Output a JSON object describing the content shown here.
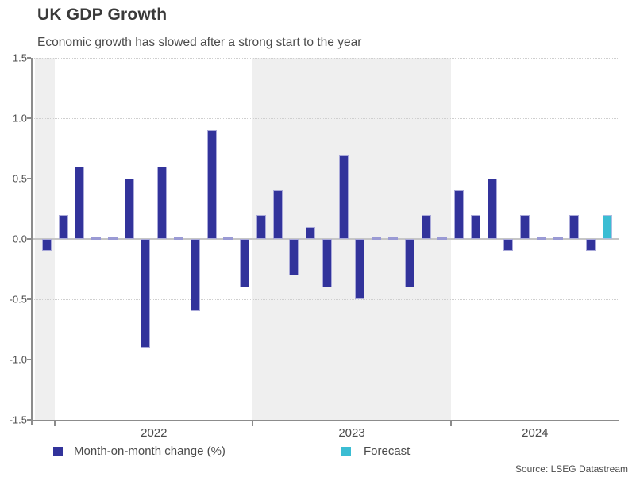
{
  "chart_data": {
    "type": "bar",
    "title": "UK GDP Growth",
    "subtitle": "Economic growth has slowed after a strong start to the year",
    "xlabel": "",
    "ylabel": "",
    "ylim": [
      -1.5,
      1.5
    ],
    "ytick_values": [
      1.5,
      1.0,
      0.5,
      0.0,
      -0.5,
      -1.0,
      -1.5
    ],
    "ytick_labels": [
      "1.5",
      "1.0",
      "0.5",
      "0.0",
      "-0.5",
      "-1.0",
      "-1.5"
    ],
    "grid": "horizontal dotted every 0.5, solid gray line at 0",
    "legend_position": "bottom",
    "year_labels": [
      "2022",
      "2023",
      "2024"
    ],
    "year_start_indices": [
      1,
      13,
      25
    ],
    "shaded_periods": [
      "pre-2022",
      "2023"
    ],
    "series": [
      {
        "name": "Month-on-month change (%)",
        "color": "#32339B"
      },
      {
        "name": "Forecast",
        "color": "#3BBDD3"
      }
    ],
    "bars": [
      {
        "month": "Dec 2021",
        "value": -0.1,
        "series": 0
      },
      {
        "month": "Jan 2022",
        "value": 0.2,
        "series": 0
      },
      {
        "month": "Feb 2022",
        "value": 0.6,
        "series": 0
      },
      {
        "month": "Mar 2022",
        "value": 0.0,
        "series": 0
      },
      {
        "month": "Apr 2022",
        "value": 0.0,
        "series": 0
      },
      {
        "month": "May 2022",
        "value": 0.5,
        "series": 0
      },
      {
        "month": "Jun 2022",
        "value": -0.9,
        "series": 0
      },
      {
        "month": "Jul 2022",
        "value": 0.6,
        "series": 0
      },
      {
        "month": "Aug 2022",
        "value": 0.0,
        "series": 0
      },
      {
        "month": "Sep 2022",
        "value": -0.6,
        "series": 0
      },
      {
        "month": "Oct 2022",
        "value": 0.9,
        "series": 0
      },
      {
        "month": "Nov 2022",
        "value": 0.0,
        "series": 0
      },
      {
        "month": "Dec 2022",
        "value": -0.4,
        "series": 0
      },
      {
        "month": "Jan 2023",
        "value": 0.2,
        "series": 0
      },
      {
        "month": "Feb 2023",
        "value": 0.4,
        "series": 0
      },
      {
        "month": "Mar 2023",
        "value": -0.3,
        "series": 0
      },
      {
        "month": "Apr 2023",
        "value": 0.1,
        "series": 0
      },
      {
        "month": "May 2023",
        "value": -0.4,
        "series": 0
      },
      {
        "month": "Jun 2023",
        "value": 0.7,
        "series": 0
      },
      {
        "month": "Jul 2023",
        "value": -0.5,
        "series": 0
      },
      {
        "month": "Aug 2023",
        "value": 0.0,
        "series": 0
      },
      {
        "month": "Sep 2023",
        "value": 0.0,
        "series": 0
      },
      {
        "month": "Oct 2023",
        "value": -0.4,
        "series": 0
      },
      {
        "month": "Nov 2023",
        "value": 0.2,
        "series": 0
      },
      {
        "month": "Dec 2023",
        "value": 0.0,
        "series": 0
      },
      {
        "month": "Jan 2024",
        "value": 0.4,
        "series": 0
      },
      {
        "month": "Feb 2024",
        "value": 0.2,
        "series": 0
      },
      {
        "month": "Mar 2024",
        "value": 0.5,
        "series": 0
      },
      {
        "month": "Apr 2024",
        "value": -0.1,
        "series": 0
      },
      {
        "month": "May 2024",
        "value": 0.2,
        "series": 0
      },
      {
        "month": "Jun 2024",
        "value": 0.0,
        "series": 0
      },
      {
        "month": "Jul 2024",
        "value": 0.0,
        "series": 0
      },
      {
        "month": "Aug 2024",
        "value": 0.2,
        "series": 0
      },
      {
        "month": "Sep 2024",
        "value": -0.1,
        "series": 0
      },
      {
        "month": "Oct 2024",
        "value": 0.2,
        "series": 1
      }
    ],
    "source": "Source: LSEG Datastream",
    "colors": {
      "bar_main": "#32339B",
      "bar_forecast": "#3BBDD3",
      "zero_value_dash": "#9A9AD4",
      "shaded_band": "#EFEFEF",
      "gridline": "#CFCFCF",
      "zero_line": "#C6C6C6",
      "axis": "#8C8C8C",
      "title_text": "#3A3A3A",
      "body_text": "#4B4B4B"
    }
  }
}
